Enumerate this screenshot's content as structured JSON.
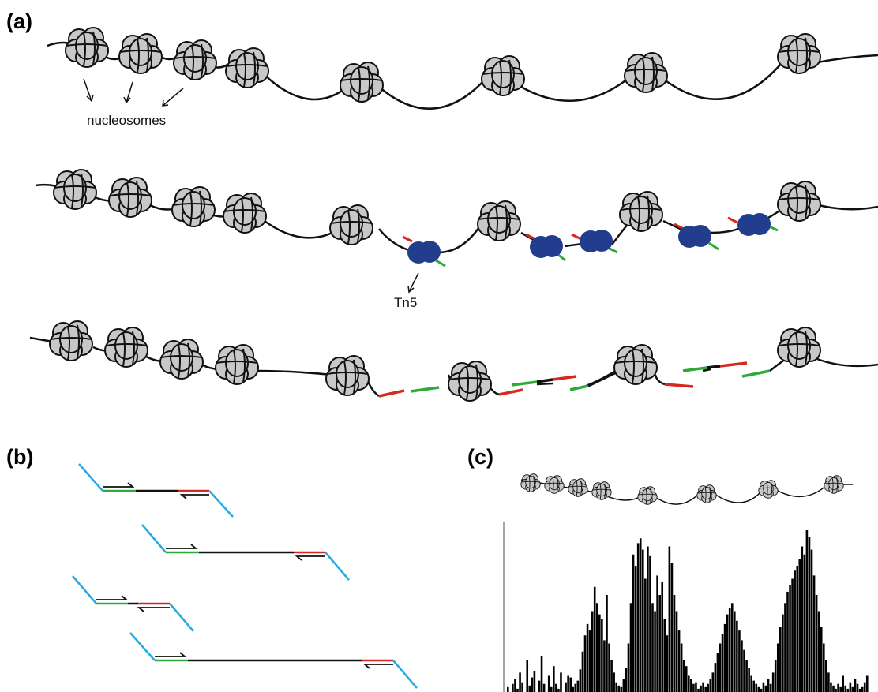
{
  "panel_a": {
    "label": "(a)",
    "nucleosome_label": "nucleosomes",
    "tn5_label": "Tn5"
  },
  "panel_b": {
    "label": "(b)"
  },
  "panel_c": {
    "label": "(c)"
  },
  "colors": {
    "dna": "#111111",
    "nucleosome_fill": "#c8c8c8",
    "tn5": "#233d8e",
    "adapter_red": "#d6281f",
    "adapter_green": "#2daa3a",
    "primer_blue": "#27aae1",
    "bars": "#000000"
  },
  "icons": [
    "nucleosome-icon",
    "tn5-icon",
    "arrow-icon"
  ],
  "chart_data": {
    "type": "bar",
    "title": "",
    "xlabel": "",
    "ylabel": "",
    "grid": false,
    "ylim": [
      0,
      1
    ],
    "values": [
      0.03,
      0,
      0.05,
      0.08,
      0.02,
      0.12,
      0.06,
      0,
      0.2,
      0.04,
      0.09,
      0.13,
      0,
      0.07,
      0.22,
      0.05,
      0,
      0.1,
      0.03,
      0.16,
      0.05,
      0.02,
      0.12,
      0,
      0.06,
      0.1,
      0.09,
      0.03,
      0.05,
      0.07,
      0.14,
      0.25,
      0.35,
      0.42,
      0.38,
      0.5,
      0.65,
      0.55,
      0.48,
      0.45,
      0.32,
      0.6,
      0.3,
      0.2,
      0.12,
      0.06,
      0.04,
      0.03,
      0.08,
      0.15,
      0.3,
      0.55,
      0.85,
      0.78,
      0.92,
      0.95,
      0.88,
      0.7,
      0.9,
      0.84,
      0.55,
      0.5,
      0.72,
      0.6,
      0.68,
      0.45,
      0.35,
      0.9,
      0.8,
      0.6,
      0.5,
      0.38,
      0.3,
      0.2,
      0.16,
      0.1,
      0.08,
      0.05,
      0.06,
      0.02,
      0.04,
      0.06,
      0.03,
      0.05,
      0.08,
      0.12,
      0.18,
      0.24,
      0.3,
      0.36,
      0.42,
      0.48,
      0.52,
      0.55,
      0.5,
      0.44,
      0.38,
      0.32,
      0.26,
      0.2,
      0.15,
      0.1,
      0.07,
      0.05,
      0.03,
      0.02,
      0.06,
      0.04,
      0.08,
      0.05,
      0.12,
      0.2,
      0.3,
      0.4,
      0.48,
      0.55,
      0.62,
      0.66,
      0.7,
      0.75,
      0.78,
      0.82,
      0.9,
      0.85,
      1.0,
      0.96,
      0.88,
      0.72,
      0.6,
      0.5,
      0.4,
      0.3,
      0.2,
      0.12,
      0.06,
      0.04,
      0.02,
      0.05,
      0.03,
      0.1,
      0.04,
      0.02,
      0.06,
      0.03,
      0.08,
      0.05,
      0.02,
      0.03,
      0.06,
      0.1
    ]
  }
}
